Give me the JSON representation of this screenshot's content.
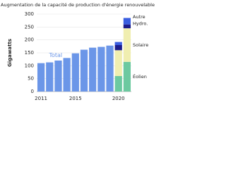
{
  "chart_data": {
    "type": "stacked-bar",
    "title": "Augmentation de la capacité de production d'énergie renouvelable",
    "y_label": "Gigawatts",
    "categories": [
      "2011",
      null,
      null,
      null,
      "2015",
      null,
      null,
      null,
      null,
      "2020",
      null
    ],
    "ylim": [
      0,
      300
    ],
    "yticks": [
      0,
      50,
      100,
      150,
      200,
      250,
      300
    ],
    "grid": true,
    "series": [
      {
        "name": "Total",
        "color": "#6b96e8",
        "values": [
          110,
          113,
          120,
          130,
          148,
          162,
          170,
          173,
          178,
          null,
          null
        ]
      },
      {
        "name": "Éolien",
        "color": "#6cc9a0",
        "values": [
          null,
          null,
          null,
          null,
          null,
          null,
          null,
          null,
          null,
          60,
          115
        ]
      },
      {
        "name": "Solaire",
        "color": "#f0eeb0",
        "values": [
          null,
          null,
          null,
          null,
          null,
          null,
          null,
          null,
          null,
          100,
          130
        ]
      },
      {
        "name": "Hydro.",
        "color": "#1c1c8c",
        "values": [
          null,
          null,
          null,
          null,
          null,
          null,
          null,
          null,
          null,
          20,
          15
        ]
      },
      {
        "name": "Autre",
        "color": "#3a5ee0",
        "values": [
          null,
          null,
          null,
          null,
          null,
          null,
          null,
          null,
          null,
          12,
          25
        ]
      }
    ]
  }
}
